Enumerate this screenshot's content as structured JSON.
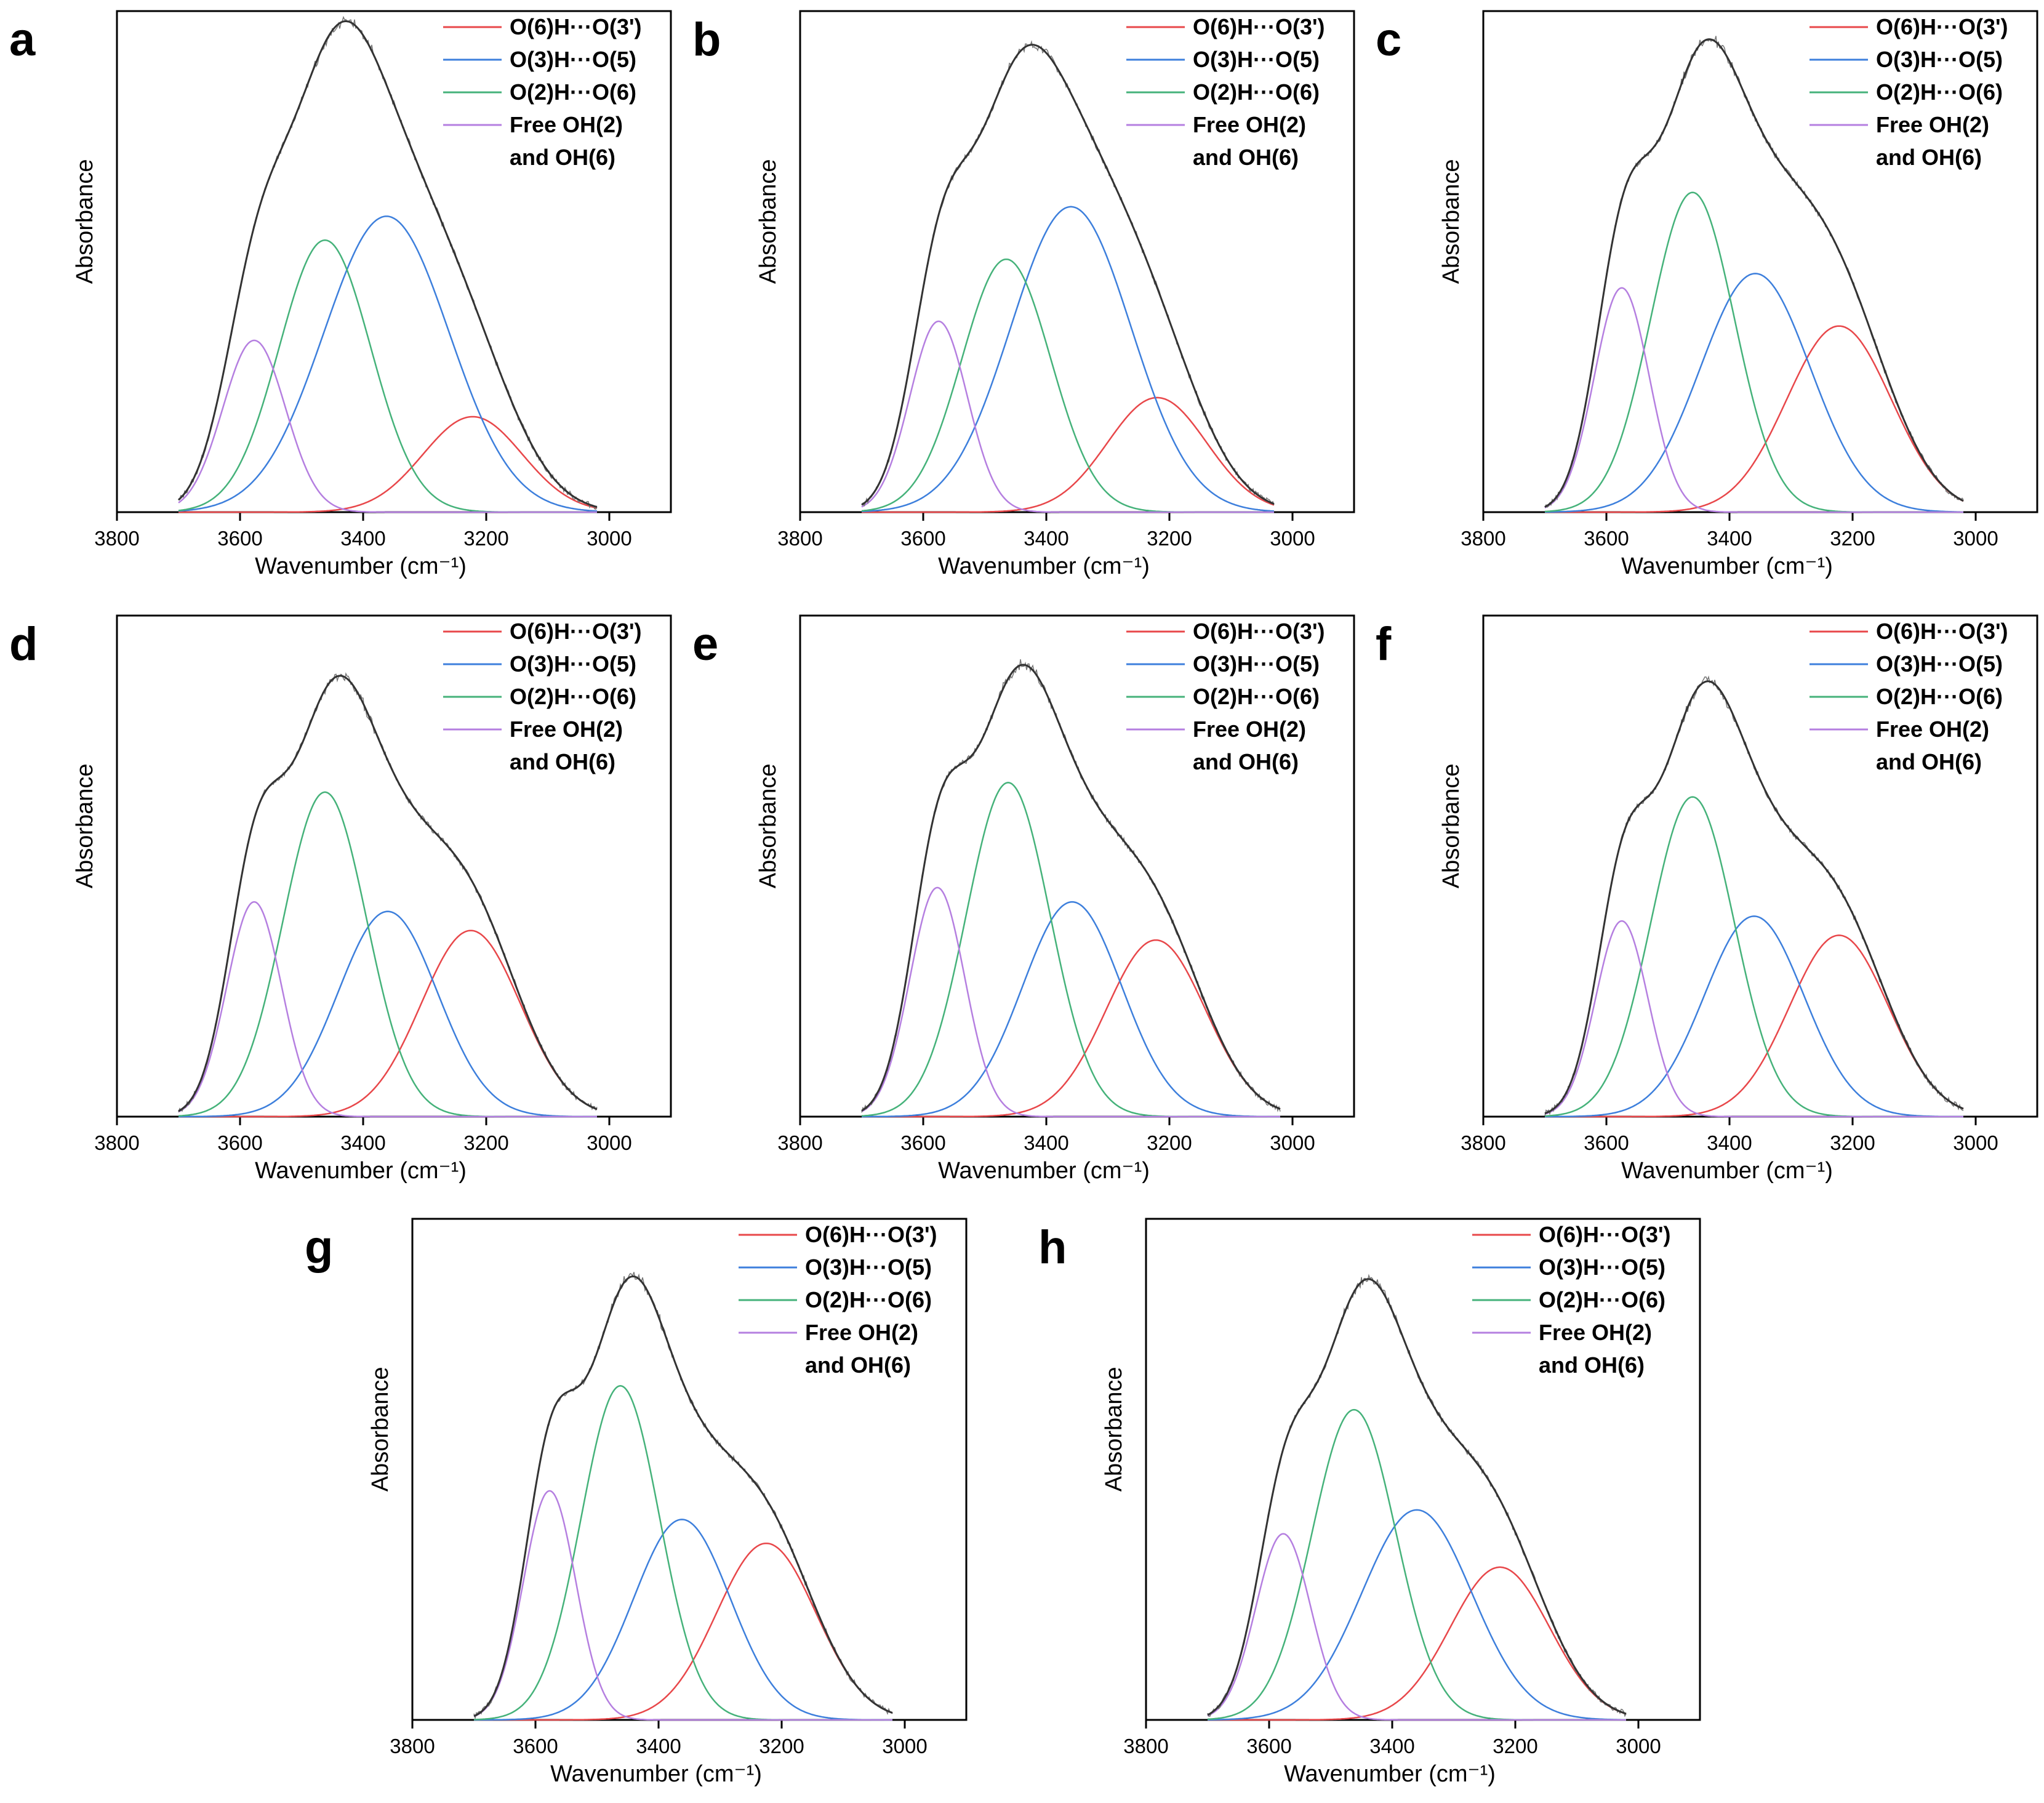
{
  "chart_data": [
    {
      "panel": "a",
      "type": "line",
      "title": "",
      "xlabel": "Wavenumber (cm⁻¹)",
      "ylabel": "Absorbance",
      "xlim": [
        3800,
        2900
      ],
      "xticks": [
        3800,
        3600,
        3400,
        3200,
        3000
      ],
      "ylim": [
        0,
        1.05
      ],
      "grid": false,
      "legend_position": "top-right",
      "legend": [
        "O(6)H···O(3')",
        "O(3)H···O(5)",
        "O(2)H···O(6)",
        "Free OH(2)",
        "and OH(6)"
      ],
      "fit_range": [
        3700,
        3020
      ],
      "series": [
        {
          "name": "O(6)H···O(3')",
          "color": "#e8474a",
          "center": 3222,
          "height": 0.2,
          "fwhm": 190
        },
        {
          "name": "O(3)H···O(5)",
          "color": "#3d7fdc",
          "center": 3362,
          "height": 0.62,
          "fwhm": 240
        },
        {
          "name": "O(2)H···O(6)",
          "color": "#45b27a",
          "center": 3462,
          "height": 0.57,
          "fwhm": 175
        },
        {
          "name": "Free OH(2) and OH(6)",
          "color": "#b57fe0",
          "center": 3577,
          "height": 0.36,
          "fwhm": 120
        }
      ]
    },
    {
      "panel": "b",
      "type": "line",
      "title": "",
      "xlabel": "Wavenumber (cm⁻¹)",
      "ylabel": "Absorbance",
      "xlim": [
        3800,
        2900
      ],
      "xticks": [
        3800,
        3600,
        3400,
        3200,
        3000
      ],
      "ylim": [
        0,
        1.05
      ],
      "grid": false,
      "legend_position": "top-right",
      "legend": [
        "O(6)H···O(3')",
        "O(3)H···O(5)",
        "O(2)H···O(6)",
        "Free OH(2)",
        "and OH(6)"
      ],
      "fit_range": [
        3700,
        3030
      ],
      "series": [
        {
          "name": "O(6)H···O(3')",
          "color": "#e8474a",
          "center": 3220,
          "height": 0.24,
          "fwhm": 190
        },
        {
          "name": "O(3)H···O(5)",
          "color": "#3d7fdc",
          "center": 3360,
          "height": 0.64,
          "fwhm": 230
        },
        {
          "name": "O(2)H···O(6)",
          "color": "#45b27a",
          "center": 3465,
          "height": 0.53,
          "fwhm": 170
        },
        {
          "name": "Free OH(2) and OH(6)",
          "color": "#b57fe0",
          "center": 3575,
          "height": 0.4,
          "fwhm": 110
        }
      ]
    },
    {
      "panel": "c",
      "type": "line",
      "title": "",
      "xlabel": "Wavenumber (cm⁻¹)",
      "ylabel": "Absorbance",
      "xlim": [
        3800,
        2900
      ],
      "xticks": [
        3800,
        3600,
        3400,
        3200,
        3000
      ],
      "ylim": [
        0,
        1.05
      ],
      "grid": false,
      "legend_position": "top-right",
      "legend": [
        "O(6)H···O(3')",
        "O(3)H···O(5)",
        "O(2)H···O(6)",
        "Free OH(2)",
        "and OH(6)"
      ],
      "fit_range": [
        3700,
        3020
      ],
      "series": [
        {
          "name": "O(6)H···O(3')",
          "color": "#e8474a",
          "center": 3222,
          "height": 0.39,
          "fwhm": 200
        },
        {
          "name": "O(3)H···O(5)",
          "color": "#3d7fdc",
          "center": 3358,
          "height": 0.5,
          "fwhm": 210
        },
        {
          "name": "O(2)H···O(6)",
          "color": "#45b27a",
          "center": 3460,
          "height": 0.67,
          "fwhm": 160
        },
        {
          "name": "Free OH(2) and OH(6)",
          "color": "#b57fe0",
          "center": 3575,
          "height": 0.47,
          "fwhm": 105
        }
      ]
    },
    {
      "panel": "d",
      "type": "line",
      "title": "",
      "xlabel": "Wavenumber (cm⁻¹)",
      "ylabel": "Absorbance",
      "xlim": [
        3800,
        2900
      ],
      "xticks": [
        3800,
        3600,
        3400,
        3200,
        3000
      ],
      "ylim": [
        0,
        1.05
      ],
      "grid": false,
      "legend_position": "top-right",
      "legend": [
        "O(6)H···O(3')",
        "O(3)H···O(5)",
        "O(2)H···O(6)",
        "Free OH(2)",
        "and OH(6)"
      ],
      "fit_range": [
        3700,
        3020
      ],
      "series": [
        {
          "name": "O(6)H···O(3')",
          "color": "#e8474a",
          "center": 3225,
          "height": 0.39,
          "fwhm": 190
        },
        {
          "name": "O(3)H···O(5)",
          "color": "#3d7fdc",
          "center": 3360,
          "height": 0.43,
          "fwhm": 190
        },
        {
          "name": "O(2)H···O(6)",
          "color": "#45b27a",
          "center": 3462,
          "height": 0.68,
          "fwhm": 160
        },
        {
          "name": "Free OH(2) and OH(6)",
          "color": "#b57fe0",
          "center": 3577,
          "height": 0.45,
          "fwhm": 105
        }
      ]
    },
    {
      "panel": "e",
      "type": "line",
      "title": "",
      "xlabel": "Wavenumber (cm⁻¹)",
      "ylabel": "Absorbance",
      "xlim": [
        3800,
        2900
      ],
      "xticks": [
        3800,
        3600,
        3400,
        3200,
        3000
      ],
      "ylim": [
        0,
        1.05
      ],
      "grid": false,
      "legend_position": "top-right",
      "legend": [
        "O(6)H···O(3')",
        "O(3)H···O(5)",
        "O(2)H···O(6)",
        "Free OH(2)",
        "and OH(6)"
      ],
      "fit_range": [
        3700,
        3020
      ],
      "series": [
        {
          "name": "O(6)H···O(3')",
          "color": "#e8474a",
          "center": 3222,
          "height": 0.37,
          "fwhm": 190
        },
        {
          "name": "O(3)H···O(5)",
          "color": "#3d7fdc",
          "center": 3358,
          "height": 0.45,
          "fwhm": 190
        },
        {
          "name": "O(2)H···O(6)",
          "color": "#45b27a",
          "center": 3462,
          "height": 0.7,
          "fwhm": 160
        },
        {
          "name": "Free OH(2) and OH(6)",
          "color": "#b57fe0",
          "center": 3577,
          "height": 0.48,
          "fwhm": 105
        }
      ]
    },
    {
      "panel": "f",
      "type": "line",
      "title": "",
      "xlabel": "Wavenumber (cm⁻¹)",
      "ylabel": "Absorbance",
      "xlim": [
        3800,
        2900
      ],
      "xticks": [
        3800,
        3600,
        3400,
        3200,
        3000
      ],
      "ylim": [
        0,
        1.05
      ],
      "grid": false,
      "legend_position": "top-right",
      "legend": [
        "O(6)H···O(3')",
        "O(3)H···O(5)",
        "O(2)H···O(6)",
        "Free OH(2)",
        "and OH(6)"
      ],
      "fit_range": [
        3700,
        3020
      ],
      "series": [
        {
          "name": "O(6)H···O(3')",
          "color": "#e8474a",
          "center": 3222,
          "height": 0.38,
          "fwhm": 190
        },
        {
          "name": "O(3)H···O(5)",
          "color": "#3d7fdc",
          "center": 3360,
          "height": 0.42,
          "fwhm": 190
        },
        {
          "name": "O(2)H···O(6)",
          "color": "#45b27a",
          "center": 3460,
          "height": 0.67,
          "fwhm": 160
        },
        {
          "name": "Free OH(2) and OH(6)",
          "color": "#b57fe0",
          "center": 3575,
          "height": 0.41,
          "fwhm": 100
        }
      ]
    },
    {
      "panel": "g",
      "type": "line",
      "title": "",
      "xlabel": "Wavenumber (cm⁻¹)",
      "ylabel": "Absorbance",
      "xlim": [
        3800,
        2900
      ],
      "xticks": [
        3800,
        3600,
        3400,
        3200,
        3000
      ],
      "ylim": [
        0,
        1.05
      ],
      "grid": false,
      "legend_position": "top-right",
      "legend": [
        "O(6)H···O(3')",
        "O(3)H···O(5)",
        "O(2)H···O(6)",
        "Free OH(2)",
        "and OH(6)"
      ],
      "fit_range": [
        3700,
        3020
      ],
      "series": [
        {
          "name": "O(6)H···O(3')",
          "color": "#e8474a",
          "center": 3225,
          "height": 0.37,
          "fwhm": 190
        },
        {
          "name": "O(3)H···O(5)",
          "color": "#3d7fdc",
          "center": 3362,
          "height": 0.42,
          "fwhm": 185
        },
        {
          "name": "O(2)H···O(6)",
          "color": "#45b27a",
          "center": 3462,
          "height": 0.7,
          "fwhm": 150
        },
        {
          "name": "Free OH(2) and OH(6)",
          "color": "#b57fe0",
          "center": 3577,
          "height": 0.48,
          "fwhm": 100
        }
      ]
    },
    {
      "panel": "h",
      "type": "line",
      "title": "",
      "xlabel": "Wavenumber (cm⁻¹)",
      "ylabel": "Absorbance",
      "xlim": [
        3800,
        2900
      ],
      "xticks": [
        3800,
        3600,
        3400,
        3200,
        3000
      ],
      "ylim": [
        0,
        1.05
      ],
      "grid": false,
      "legend_position": "top-right",
      "legend": [
        "O(6)H···O(3')",
        "O(3)H···O(5)",
        "O(2)H···O(6)",
        "Free OH(2)",
        "and OH(6)"
      ],
      "fit_range": [
        3700,
        3020
      ],
      "series": [
        {
          "name": "O(6)H···O(3')",
          "color": "#e8474a",
          "center": 3225,
          "height": 0.32,
          "fwhm": 190
        },
        {
          "name": "O(3)H···O(5)",
          "color": "#3d7fdc",
          "center": 3360,
          "height": 0.44,
          "fwhm": 210
        },
        {
          "name": "O(2)H···O(6)",
          "color": "#45b27a",
          "center": 3462,
          "height": 0.65,
          "fwhm": 160
        },
        {
          "name": "Free OH(2) and OH(6)",
          "color": "#b57fe0",
          "center": 3577,
          "height": 0.39,
          "fwhm": 105
        }
      ]
    }
  ]
}
